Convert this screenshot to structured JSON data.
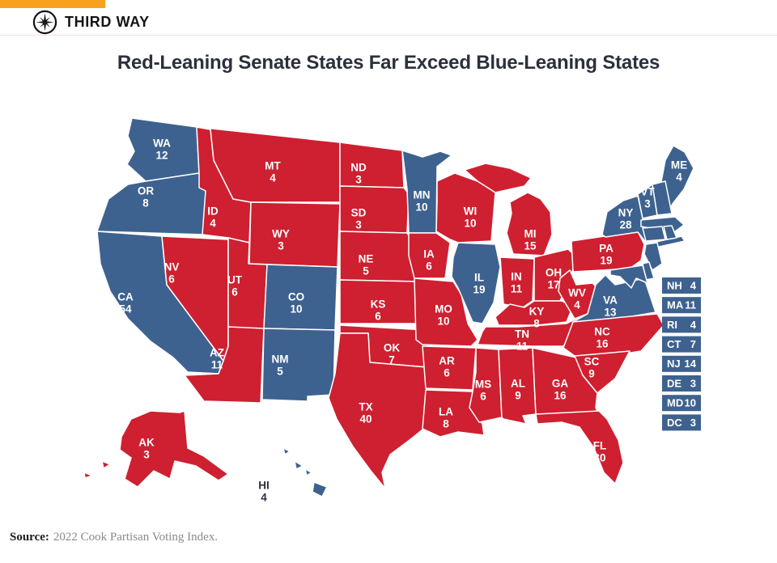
{
  "brand": {
    "name": "THIRD WAY",
    "logo_icon": "compass-star-icon"
  },
  "title": "Red-Leaning Senate States Far Exceed Blue-Leaning States",
  "source": {
    "label": "Source:",
    "text": "2022 Cook Partisan Voting Index."
  },
  "colors": {
    "red": "#ce2030",
    "blue": "#3e628f",
    "accent_orange": "#f8a11c",
    "title_text": "#2b303c",
    "state_label": "#ffffff",
    "dark_label": "#2b303c",
    "border": "#ffffff"
  },
  "chart_data": {
    "type": "choropleth-map",
    "title": "Red-Leaning Senate States Far Exceed Blue-Leaning States",
    "region": "United States (50 states + DC)",
    "legend": {
      "red": "red-leaning state",
      "blue": "blue-leaning state"
    },
    "states": [
      {
        "abbr": "WA",
        "value": 12,
        "lean": "blue",
        "label": "map"
      },
      {
        "abbr": "OR",
        "value": 8,
        "lean": "blue",
        "label": "map"
      },
      {
        "abbr": "CA",
        "value": 54,
        "lean": "blue",
        "label": "map"
      },
      {
        "abbr": "NV",
        "value": 6,
        "lean": "red",
        "label": "map"
      },
      {
        "abbr": "ID",
        "value": 4,
        "lean": "red",
        "label": "map"
      },
      {
        "abbr": "MT",
        "value": 4,
        "lean": "red",
        "label": "map"
      },
      {
        "abbr": "WY",
        "value": 3,
        "lean": "red",
        "label": "map"
      },
      {
        "abbr": "UT",
        "value": 6,
        "lean": "red",
        "label": "map"
      },
      {
        "abbr": "CO",
        "value": 10,
        "lean": "blue",
        "label": "map"
      },
      {
        "abbr": "AZ",
        "value": 11,
        "lean": "red",
        "label": "map"
      },
      {
        "abbr": "NM",
        "value": 5,
        "lean": "blue",
        "label": "map"
      },
      {
        "abbr": "ND",
        "value": 3,
        "lean": "red",
        "label": "map"
      },
      {
        "abbr": "SD",
        "value": 3,
        "lean": "red",
        "label": "map"
      },
      {
        "abbr": "NE",
        "value": 5,
        "lean": "red",
        "label": "map"
      },
      {
        "abbr": "KS",
        "value": 6,
        "lean": "red",
        "label": "map"
      },
      {
        "abbr": "OK",
        "value": 7,
        "lean": "red",
        "label": "map"
      },
      {
        "abbr": "TX",
        "value": 40,
        "lean": "red",
        "label": "map"
      },
      {
        "abbr": "MN",
        "value": 10,
        "lean": "blue",
        "label": "map"
      },
      {
        "abbr": "IA",
        "value": 6,
        "lean": "red",
        "label": "map"
      },
      {
        "abbr": "MO",
        "value": 10,
        "lean": "red",
        "label": "map"
      },
      {
        "abbr": "AR",
        "value": 6,
        "lean": "red",
        "label": "map"
      },
      {
        "abbr": "LA",
        "value": 8,
        "lean": "red",
        "label": "map"
      },
      {
        "abbr": "WI",
        "value": 10,
        "lean": "red",
        "label": "map"
      },
      {
        "abbr": "IL",
        "value": 19,
        "lean": "blue",
        "label": "map"
      },
      {
        "abbr": "MS",
        "value": 6,
        "lean": "red",
        "label": "map"
      },
      {
        "abbr": "AL",
        "value": 9,
        "lean": "red",
        "label": "map"
      },
      {
        "abbr": "GA",
        "value": 16,
        "lean": "red",
        "label": "map"
      },
      {
        "abbr": "MI",
        "value": 15,
        "lean": "red",
        "label": "map"
      },
      {
        "abbr": "IN",
        "value": 11,
        "lean": "red",
        "label": "map"
      },
      {
        "abbr": "OH",
        "value": 17,
        "lean": "red",
        "label": "map"
      },
      {
        "abbr": "KY",
        "value": 8,
        "lean": "red",
        "label": "map"
      },
      {
        "abbr": "TN",
        "value": 11,
        "lean": "red",
        "label": "map"
      },
      {
        "abbr": "WV",
        "value": 4,
        "lean": "red",
        "label": "map"
      },
      {
        "abbr": "VA",
        "value": 13,
        "lean": "blue",
        "label": "map"
      },
      {
        "abbr": "NC",
        "value": 16,
        "lean": "red",
        "label": "map"
      },
      {
        "abbr": "SC",
        "value": 9,
        "lean": "red",
        "label": "map"
      },
      {
        "abbr": "FL",
        "value": 30,
        "lean": "red",
        "label": "map"
      },
      {
        "abbr": "PA",
        "value": 19,
        "lean": "red",
        "label": "map"
      },
      {
        "abbr": "NY",
        "value": 28,
        "lean": "blue",
        "label": "map"
      },
      {
        "abbr": "VT",
        "value": 3,
        "lean": "blue",
        "label": "map"
      },
      {
        "abbr": "ME",
        "value": 4,
        "lean": "blue",
        "label": "map"
      },
      {
        "abbr": "AK",
        "value": 3,
        "lean": "red",
        "label": "map"
      },
      {
        "abbr": "HI",
        "value": 4,
        "lean": "blue",
        "label": "map"
      },
      {
        "abbr": "NH",
        "value": 4,
        "lean": "blue",
        "label": "list"
      },
      {
        "abbr": "MA",
        "value": 11,
        "lean": "blue",
        "label": "list"
      },
      {
        "abbr": "RI",
        "value": 4,
        "lean": "blue",
        "label": "list"
      },
      {
        "abbr": "CT",
        "value": 7,
        "lean": "blue",
        "label": "list"
      },
      {
        "abbr": "NJ",
        "value": 14,
        "lean": "blue",
        "label": "list"
      },
      {
        "abbr": "DE",
        "value": 3,
        "lean": "blue",
        "label": "list"
      },
      {
        "abbr": "MD",
        "value": 10,
        "lean": "blue",
        "label": "list"
      },
      {
        "abbr": "DC",
        "value": 3,
        "lean": "blue",
        "label": "list"
      }
    ]
  }
}
